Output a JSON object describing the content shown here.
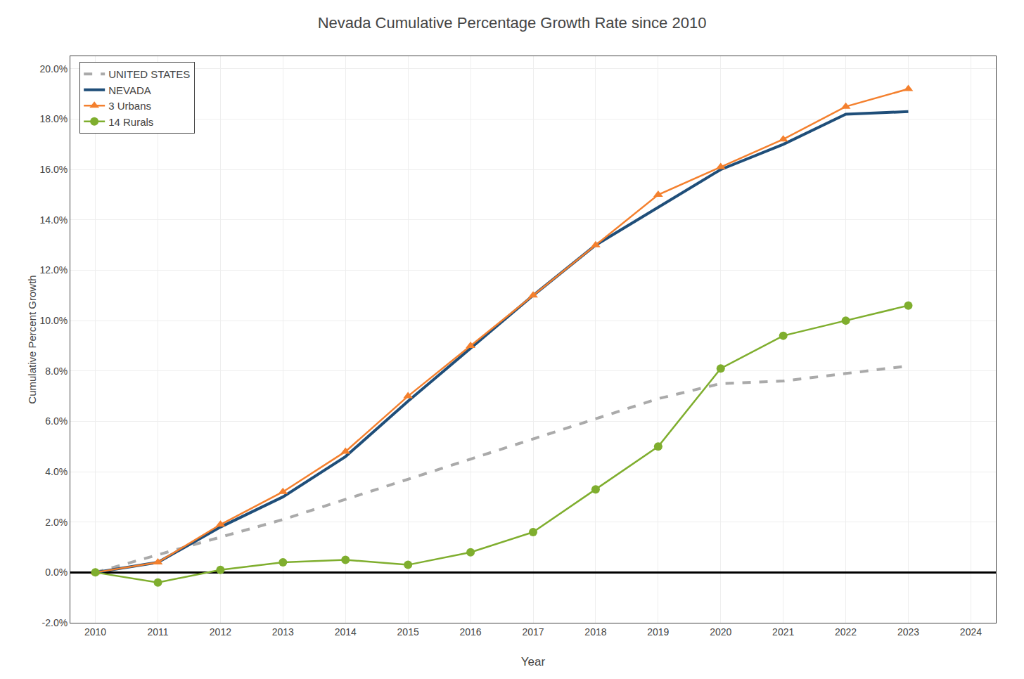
{
  "chart_data": {
    "type": "line",
    "title": "Nevada Cumulative Percentage Growth Rate since 2010",
    "x_label": "Year",
    "y_label": "Cumulative Percent Growth",
    "x": [
      2010,
      2011,
      2012,
      2013,
      2014,
      2015,
      2016,
      2017,
      2018,
      2019,
      2020,
      2021,
      2022,
      2023
    ],
    "series": [
      {
        "name": "UNITED STATES",
        "color": "#aaaaaa",
        "line_style": "dashed",
        "values": [
          0.0,
          0.007,
          0.014,
          0.021,
          0.029,
          0.037,
          0.045,
          0.053,
          0.061,
          0.069,
          0.075,
          0.076,
          0.079,
          0.082
        ]
      },
      {
        "name": "NEVADA",
        "color": "#1f4e79",
        "line_style": "solid",
        "values": [
          0.0,
          0.004,
          0.018,
          0.03,
          0.046,
          0.068,
          0.089,
          0.11,
          0.13,
          0.145,
          0.16,
          0.17,
          0.182,
          0.183
        ]
      },
      {
        "name": "3 Urbans",
        "color": "#f4802e",
        "line_style": "solid",
        "marker": "triangle",
        "values": [
          0.0,
          0.004,
          0.019,
          0.032,
          0.048,
          0.07,
          0.09,
          0.11,
          0.13,
          0.15,
          0.161,
          0.172,
          0.185,
          0.192
        ]
      },
      {
        "name": "14 Rurals",
        "color": "#7fae2e",
        "line_style": "solid",
        "marker": "circle",
        "values": [
          0.0,
          -0.004,
          0.001,
          0.004,
          0.005,
          0.003,
          0.008,
          0.016,
          0.033,
          0.05,
          0.081,
          0.094,
          0.1,
          0.106
        ]
      }
    ],
    "xlim": [
      2009.6,
      2024.4
    ],
    "xticks": [
      2010,
      2011,
      2012,
      2013,
      2014,
      2015,
      2016,
      2017,
      2018,
      2019,
      2020,
      2021,
      2022,
      2023,
      2024
    ],
    "ylim": [
      -0.02,
      0.205
    ],
    "yticks": [
      {
        "value": -0.02,
        "label": "-2.0%"
      },
      {
        "value": 0.0,
        "label": "0.0%"
      },
      {
        "value": 0.02,
        "label": "2.0%"
      },
      {
        "value": 0.04,
        "label": "4.0%"
      },
      {
        "value": 0.06,
        "label": "6.0%"
      },
      {
        "value": 0.08,
        "label": "8.0%"
      },
      {
        "value": 0.1,
        "label": "10.0%"
      },
      {
        "value": 0.12,
        "label": "12.0%"
      },
      {
        "value": 0.14,
        "label": "14.0%"
      },
      {
        "value": 0.16,
        "label": "16.0%"
      },
      {
        "value": 0.18,
        "label": "18.0%"
      },
      {
        "value": 0.2,
        "label": "20.0%"
      }
    ],
    "grid": true,
    "legend": "upper left"
  }
}
